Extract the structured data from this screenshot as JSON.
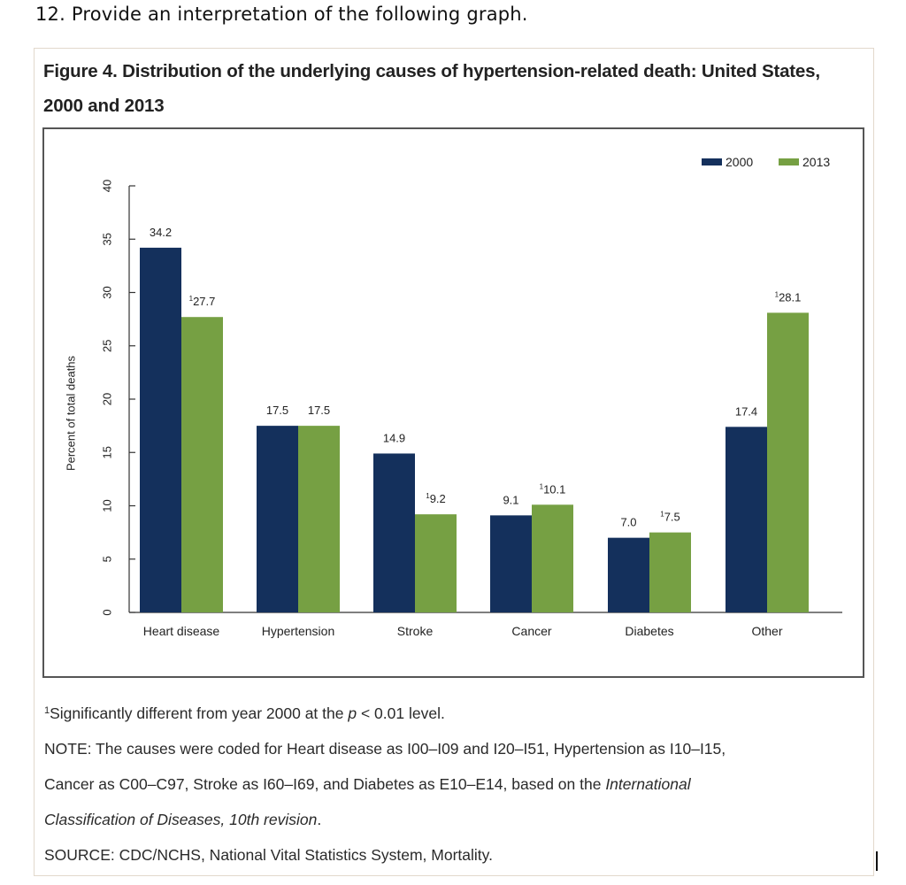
{
  "question": "12. Provide an interpretation of the following graph.",
  "figure": {
    "title_line1": "Figure 4. Distribution of the underlying causes of hypertension-related death: United States,",
    "title_line2": "2000 and 2013"
  },
  "chart_data": {
    "type": "bar",
    "title": "Figure 4. Distribution of the underlying causes of hypertension-related death: United States, 2000 and 2013",
    "xlabel": "",
    "ylabel": "Percent of total deaths",
    "ylim": [
      0,
      40
    ],
    "yticks": [
      0,
      5,
      10,
      15,
      20,
      25,
      30,
      35,
      40
    ],
    "categories": [
      "Heart disease",
      "Hypertension",
      "Stroke",
      "Cancer",
      "Diabetes",
      "Other"
    ],
    "series": [
      {
        "name": "2000",
        "color": "#14305c",
        "values": [
          34.2,
          17.5,
          14.9,
          9.1,
          7.0,
          17.4
        ],
        "labels": [
          "34.2",
          "17.5",
          "14.9",
          "9.1",
          "7.0",
          "17.4"
        ],
        "significant": [
          false,
          false,
          false,
          false,
          false,
          false
        ]
      },
      {
        "name": "2013",
        "color": "#76a043",
        "values": [
          27.7,
          17.5,
          9.2,
          10.1,
          7.5,
          28.1
        ],
        "labels": [
          "27.7",
          "17.5",
          "9.2",
          "10.1",
          "7.5",
          "28.1"
        ],
        "significant": [
          true,
          false,
          true,
          true,
          true,
          true
        ]
      }
    ],
    "footnote_marker": "1",
    "legend_position": "top-right",
    "grid": false
  },
  "notes": {
    "footnote_marker": "1",
    "footnote_text_a": "Significantly different from year 2000 at the ",
    "footnote_p": "p",
    "footnote_text_b": " < 0.01 level.",
    "note_line1": "NOTE: The causes were coded for Heart disease as I00–I09 and I20–I51, Hypertension as I10–I15,",
    "note_line2a": "Cancer as C00–C97, Stroke as I60–I69, and Diabetes as E10–E14, based on the ",
    "note_line2b": "International",
    "note_line3a": "Classification of Diseases, 10th revision",
    "note_line3b": ".",
    "source": "SOURCE: CDC/NCHS, National Vital Statistics System, Mortality."
  }
}
